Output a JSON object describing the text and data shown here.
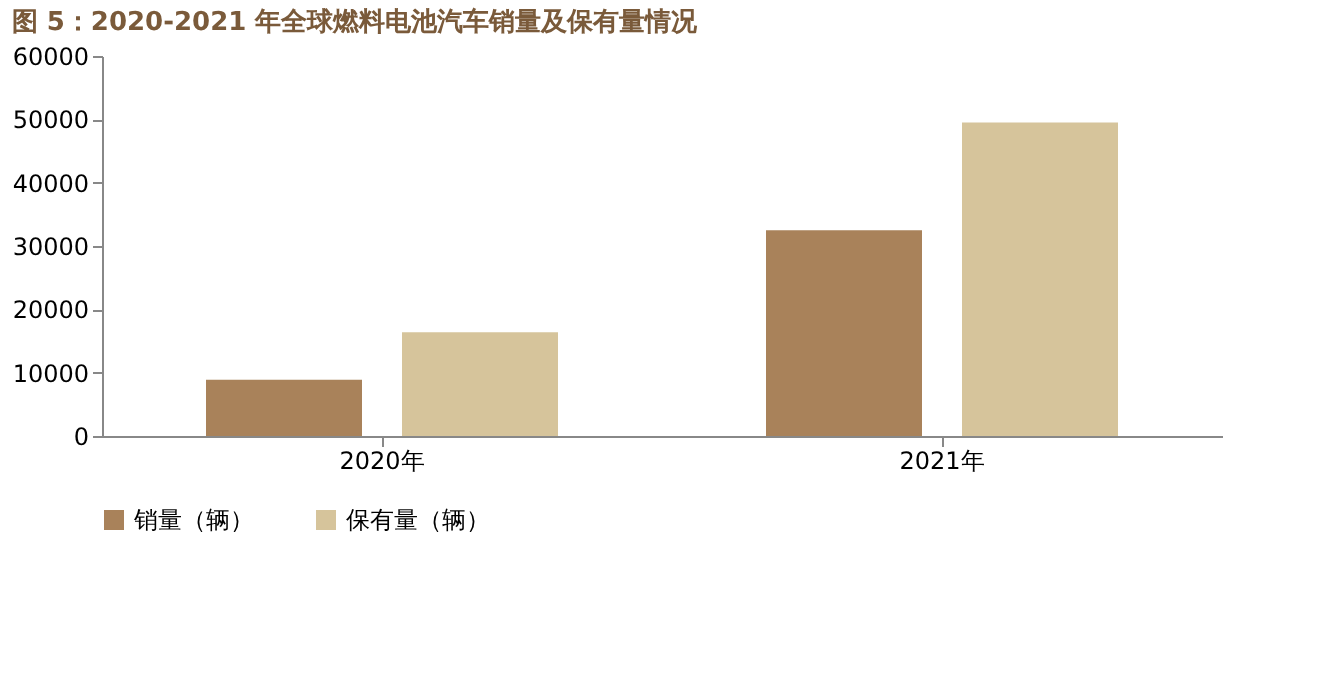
{
  "chart_data": {
    "type": "bar",
    "title": "图 5：2020-2021 年全球燃料电池汽车销量及保有量情况",
    "categories": [
      "2020年",
      "2021年"
    ],
    "series": [
      {
        "name": "销量（辆）",
        "color": "#a9825a",
        "values": [
          8900,
          32500
        ]
      },
      {
        "name": "保有量（辆）",
        "color": "#d6c49b",
        "values": [
          16400,
          49500
        ]
      }
    ],
    "ylim": [
      0,
      60000
    ],
    "yticks": [
      0,
      10000,
      20000,
      30000,
      40000,
      50000,
      60000
    ],
    "grid": false,
    "legend": "bottom"
  }
}
